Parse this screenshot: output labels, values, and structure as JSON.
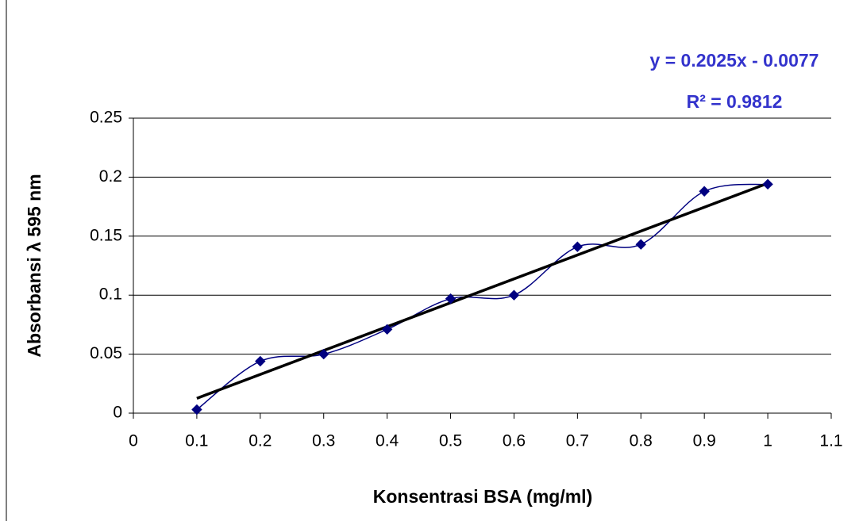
{
  "chart_data": {
    "type": "scatter",
    "x_label": "Konsentrasi BSA (mg/ml)",
    "y_label": "Absorbansi λ 595 nm",
    "x": [
      0.1,
      0.2,
      0.3,
      0.4,
      0.5,
      0.6,
      0.7,
      0.8,
      0.9,
      1.0
    ],
    "series": [
      {
        "name": "Absorbansi",
        "color": "#000080",
        "values": [
          0.003,
          0.044,
          0.05,
          0.071,
          0.097,
          0.1,
          0.141,
          0.143,
          0.188,
          0.194
        ]
      }
    ],
    "trendline": {
      "slope": 0.2025,
      "intercept": -0.0077,
      "color": "#000000",
      "equation": "y = 0.2025x - 0.0077",
      "r2_label": "R² = 0.9812"
    },
    "xlim": [
      0,
      1.1
    ],
    "xticks": [
      0,
      0.1,
      0.2,
      0.3,
      0.4,
      0.5,
      0.6,
      0.7,
      0.8,
      0.9,
      1,
      1.1
    ],
    "ylim": [
      0,
      0.25
    ],
    "yticks": [
      0,
      0.05,
      0.1,
      0.15,
      0.2,
      0.25
    ],
    "grid": true,
    "smooth": true
  }
}
